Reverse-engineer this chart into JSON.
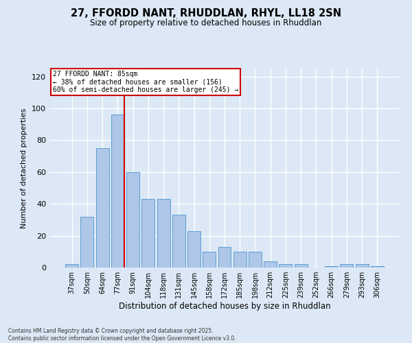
{
  "title_line1": "27, FFORDD NANT, RHUDDLAN, RHYL, LL18 2SN",
  "title_line2": "Size of property relative to detached houses in Rhuddlan",
  "xlabel": "Distribution of detached houses by size in Rhuddlan",
  "ylabel": "Number of detached properties",
  "categories": [
    "37sqm",
    "50sqm",
    "64sqm",
    "77sqm",
    "91sqm",
    "104sqm",
    "118sqm",
    "131sqm",
    "145sqm",
    "158sqm",
    "172sqm",
    "185sqm",
    "198sqm",
    "212sqm",
    "225sqm",
    "239sqm",
    "252sqm",
    "266sqm",
    "279sqm",
    "293sqm",
    "306sqm"
  ],
  "values": [
    2,
    32,
    75,
    96,
    60,
    43,
    43,
    33,
    23,
    10,
    13,
    10,
    10,
    4,
    2,
    2,
    0,
    1,
    2,
    2,
    1
  ],
  "bar_color": "#aec6e8",
  "bar_edge_color": "#5a9fd4",
  "property_bar_index": 3,
  "annotation_title": "27 FFORDD NANT: 85sqm",
  "annotation_line2": "← 38% of detached houses are smaller (156)",
  "annotation_line3": "60% of semi-detached houses are larger (245) →",
  "vline_color": "#cc0000",
  "annotation_box_color": "#ffffff",
  "annotation_box_edge_color": "#cc0000",
  "background_color": "#dce8f5",
  "plot_bg_color": "#dce8f5",
  "grid_color": "#ffffff",
  "ylim": [
    0,
    125
  ],
  "yticks": [
    0,
    20,
    40,
    60,
    80,
    100,
    120
  ],
  "footer_line1": "Contains HM Land Registry data © Crown copyright and database right 2025.",
  "footer_line2": "Contains public sector information licensed under the Open Government Licence v3.0."
}
